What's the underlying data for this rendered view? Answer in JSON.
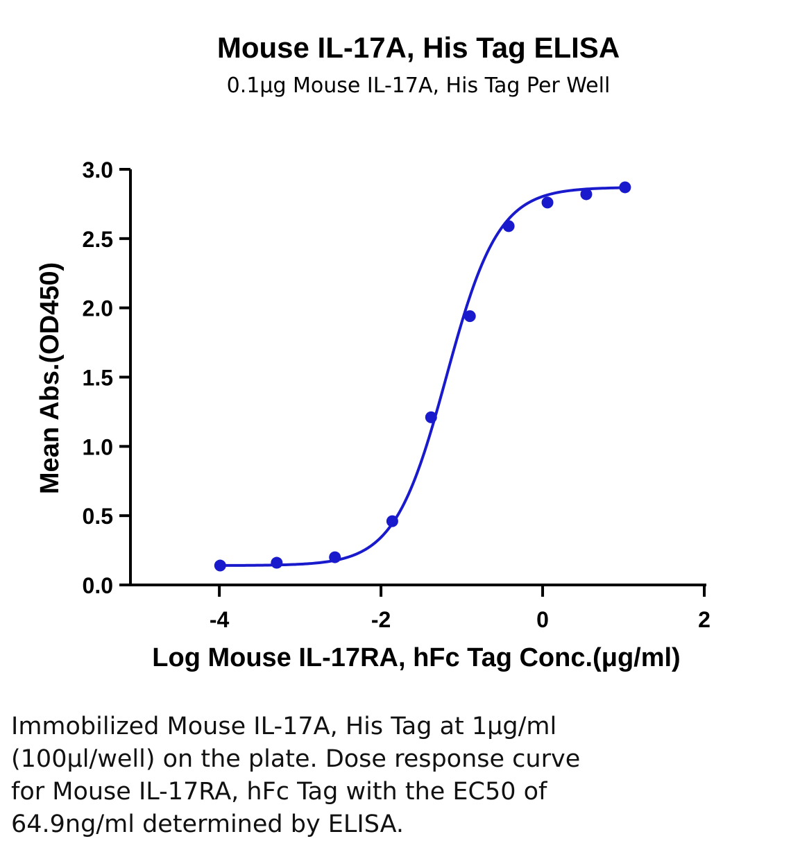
{
  "colors": {
    "series": "#1a1acd",
    "axis": "#000000",
    "text": "#000000"
  },
  "chart_data": {
    "type": "scatter",
    "title": "Mouse IL-17A, His Tag ELISA",
    "subtitle": "0.1μg Mouse IL-17A, His Tag Per Well",
    "xlabel": "Log Mouse IL-17RA, hFc Tag Conc.(μg/ml)",
    "ylabel": "Mean Abs.(OD450)",
    "xlim": [
      -5.1,
      2
    ],
    "ylim": [
      0,
      3.0
    ],
    "xticks": [
      -4,
      -2,
      0,
      2
    ],
    "xtick_labels": [
      "-4",
      "-2",
      "0",
      "2"
    ],
    "yticks": [
      0,
      0.5,
      1.0,
      1.5,
      2.0,
      2.5,
      3.0
    ],
    "ytick_labels": [
      "0.0",
      "0.5",
      "1.0",
      "1.5",
      "2.0",
      "2.5",
      "3.0"
    ],
    "grid": false,
    "legend": "none",
    "series": [
      {
        "x": [
          -3.99,
          -3.29,
          -2.57,
          -1.86,
          -1.38,
          -0.9,
          -0.42,
          0.06,
          0.54,
          1.02
        ],
        "y": [
          0.14,
          0.16,
          0.2,
          0.46,
          1.21,
          1.94,
          2.59,
          2.76,
          2.82,
          2.87
        ]
      }
    ],
    "fit": {
      "model": "4PL",
      "bottom": 0.14,
      "top": 2.87,
      "log_ec50": -1.19,
      "hill": 1.35
    }
  },
  "caption": {
    "lines": [
      "Immobilized Mouse IL-17A, His Tag at 1μg/ml",
      "(100μl/well) on the plate. Dose response curve",
      "for Mouse IL-17RA, hFc Tag with the EC50 of",
      "64.9ng/ml determined by ELISA."
    ]
  }
}
